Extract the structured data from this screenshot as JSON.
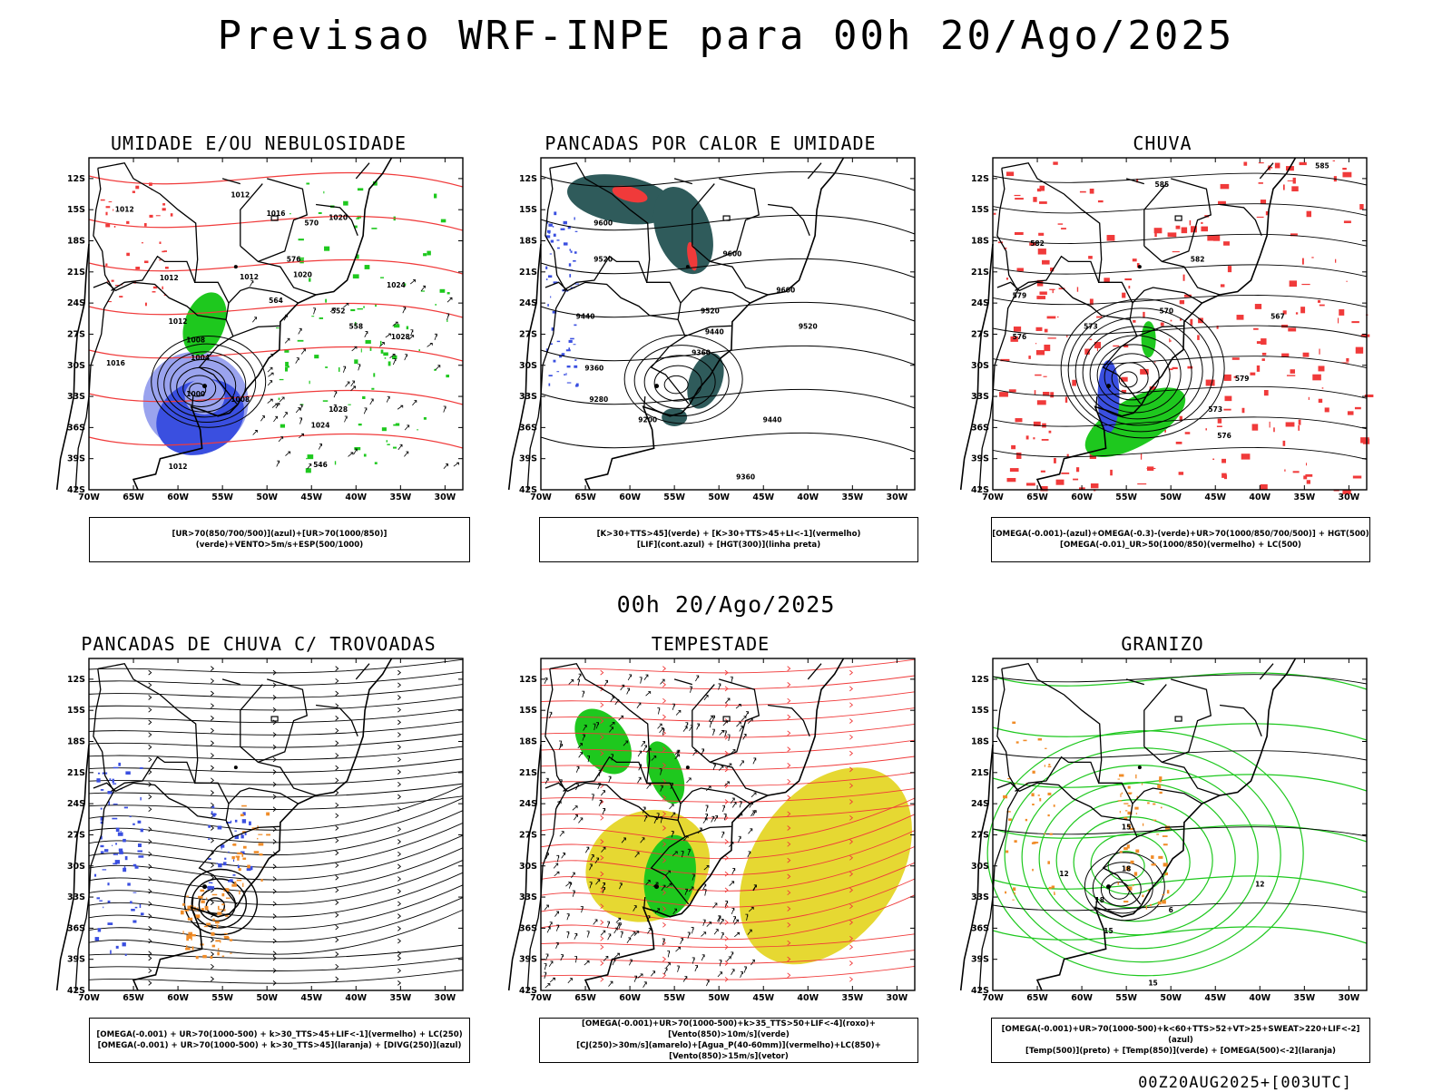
{
  "header": {
    "title": "Previsao WRF-INPE  para 00h 20/Ago/2025",
    "mid_title": "00h 20/Ago/2025",
    "footer": "00Z20AUG2025+[003UTC]"
  },
  "axes": {
    "lat_labels": [
      "12S",
      "15S",
      "18S",
      "21S",
      "24S",
      "27S",
      "30S",
      "33S",
      "36S",
      "39S",
      "42S"
    ],
    "lon_labels": [
      "70W",
      "65W",
      "60W",
      "55W",
      "50W",
      "45W",
      "40W",
      "35W",
      "30W"
    ],
    "lat_range": [
      -42,
      -10
    ],
    "lon_range": [
      -70,
      -28
    ]
  },
  "colors": {
    "blue": "#3a4fe0",
    "lightblue": "#9aa3ee",
    "green": "#1ec81e",
    "red": "#f03a3a",
    "darkteal": "#2f5b5b",
    "yellow": "#e6d832",
    "orange": "#f08c28"
  },
  "panels": [
    {
      "title": "UMIDADE E/OU NEBULOSIDADE",
      "legend": [
        "[UR>70(850/700/500)](azul)+[UR>70(1000/850)](verde)+VENTO>5m/s+ESP(500/1000)"
      ],
      "contour_labels": [
        "1012",
        "1012",
        "1016",
        "1020",
        "1020",
        "1024",
        "1028",
        "1012",
        "1008",
        "1004",
        "1000",
        "1008",
        "1012",
        "1016",
        "1012",
        "1012",
        "1024",
        "1028",
        "570",
        "576",
        "564",
        "552",
        "558",
        "546"
      ]
    },
    {
      "title": "PANCADAS POR CALOR E UMIDADE",
      "legend": [
        "[K>30+TTS>45](verde)  +  [K>30+TTS>45+LI<-1](vermelho)",
        "[LIF](cont.azul)  +  [HGT(300)](linha preta)"
      ],
      "contour_labels": [
        "9600",
        "9520",
        "9440",
        "9360",
        "9280",
        "9200",
        "9600",
        "9520",
        "9440",
        "9360",
        "9520",
        "9600",
        "9440",
        "9360"
      ]
    },
    {
      "title": "CHUVA",
      "legend": [
        "[OMEGA(-0.001)-(azul)+OMEGA(-0.3)-(verde)+UR>70(1000/850/700/500)]  +  HGT(500)",
        "[OMEGA(-0.01)_UR>50(1000/850)(vermelho)  +  LC(500)"
      ],
      "contour_labels": [
        "585",
        "585",
        "582",
        "579",
        "576",
        "573",
        "570",
        "567",
        "573",
        "576",
        "579",
        "582"
      ]
    },
    {
      "title": "PANCADAS DE CHUVA C/ TROVOADAS",
      "legend": [
        "[OMEGA(-0.001)  +  UR>70(1000-500)  +  k>30_TTS>45+LIF<-1](vermelho)  +  LC(250)",
        "[OMEGA(-0.001)  +  UR>70(1000-500)  +  k>30_TTS>45](laranja)  +  [DIVG(250)](azul)"
      ],
      "contour_labels": []
    },
    {
      "title": "TEMPESTADE",
      "legend": [
        "[OMEGA(-0.001)+UR>70(1000-500)+k>35_TTS>50+LIF<-4](roxo)+[Vento(850)>10m/s](verde)",
        "[CJ(250)>30m/s](amarelo)+[Agua_P(40-60mm)](vermelho)+LC(850)+[Vento(850)>15m/s](vetor)"
      ],
      "contour_labels": []
    },
    {
      "title": "GRANIZO",
      "legend": [
        "[OMEGA(-0.001)+UR>70(1000-500)+k<60+TTS>52+VT>25+SWEAT>220+LIF<-2](azul)",
        "[Temp(500)](preto)  +  [Temp(850)](verde)  +  [OMEGA(500)<-2](laranja)"
      ],
      "contour_labels": [
        "15",
        "18",
        "18",
        "12",
        "15",
        "12",
        "15",
        "6"
      ]
    }
  ]
}
